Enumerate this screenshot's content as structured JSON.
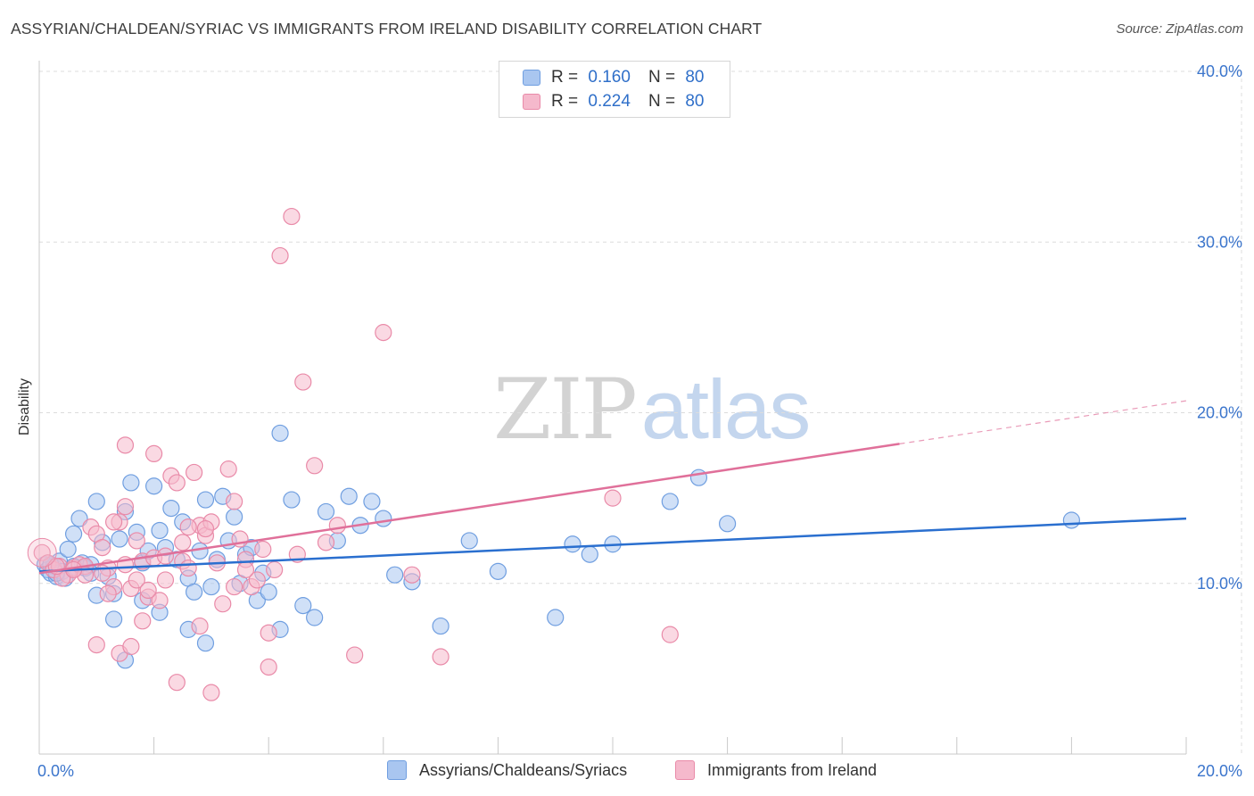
{
  "header": {
    "title": "ASSYRIAN/CHALDEAN/SYRIAC VS IMMIGRANTS FROM IRELAND DISABILITY CORRELATION CHART",
    "source": "Source: ZipAtlas.com"
  },
  "watermark": {
    "zip": "ZIP",
    "atlas": "atlas"
  },
  "legend": {
    "rows": [
      {
        "r_label": "R =",
        "r_value": "0.160",
        "n_label": "N =",
        "n_value": "80",
        "color": "#a9c6f0"
      },
      {
        "r_label": "R =",
        "r_value": "0.224",
        "n_label": "N =",
        "n_value": "80",
        "color": "#f5b9cc"
      }
    ]
  },
  "bottom_legend": {
    "series_a": "Assyrians/Chaldeans/Syriacs",
    "series_b": "Immigrants from Ireland"
  },
  "colors": {
    "series_a_fill": "#a9c6f0",
    "series_a_stroke": "#6f9ee0",
    "series_a_line": "#2a6fcf",
    "series_b_fill": "#f5b9cc",
    "series_b_stroke": "#e98aa8",
    "series_b_line": "#e0709a",
    "tick_label": "#3b75cc",
    "grid": "#dcdcdc"
  },
  "chart_data": {
    "type": "scatter",
    "title": "ASSYRIAN/CHALDEAN/SYRIAC VS IMMIGRANTS FROM IRELAND DISABILITY CORRELATION CHART",
    "xlabel": "",
    "ylabel": "Disability",
    "xlim": [
      0,
      20
    ],
    "ylim": [
      0,
      40
    ],
    "x_tick_labels": [
      "0.0%",
      "20.0%"
    ],
    "y_ticks": [
      10,
      20,
      30,
      40
    ],
    "y_tick_labels": [
      "10.0%",
      "20.0%",
      "30.0%",
      "40.0%"
    ],
    "grid": "horizontal dashed",
    "legend_position": "top-center",
    "series": [
      {
        "name": "Assyrians/Chaldeans/Syriacs",
        "R": 0.16,
        "N": 80,
        "trend": {
          "x": [
            0,
            20
          ],
          "y": [
            10.7,
            13.8
          ],
          "dashed_from": null
        },
        "points": [
          [
            0.1,
            11.1
          ],
          [
            0.15,
            10.8
          ],
          [
            0.2,
            10.6
          ],
          [
            0.25,
            11.0
          ],
          [
            0.3,
            10.4
          ],
          [
            0.35,
            11.3
          ],
          [
            0.4,
            10.7
          ],
          [
            0.45,
            10.3
          ],
          [
            0.5,
            12.0
          ],
          [
            0.6,
            12.9
          ],
          [
            0.7,
            13.8
          ],
          [
            0.75,
            11.2
          ],
          [
            0.8,
            10.9
          ],
          [
            0.9,
            11.1
          ],
          [
            1.0,
            9.3
          ],
          [
            1.1,
            12.4
          ],
          [
            1.2,
            10.4
          ],
          [
            1.3,
            9.4
          ],
          [
            1.4,
            12.6
          ],
          [
            1.5,
            14.2
          ],
          [
            1.6,
            15.9
          ],
          [
            1.7,
            13.0
          ],
          [
            1.8,
            11.2
          ],
          [
            1.9,
            11.9
          ],
          [
            2.0,
            15.7
          ],
          [
            2.1,
            13.1
          ],
          [
            2.2,
            12.1
          ],
          [
            2.3,
            14.4
          ],
          [
            2.4,
            11.4
          ],
          [
            2.5,
            13.6
          ],
          [
            2.6,
            10.3
          ],
          [
            2.7,
            9.5
          ],
          [
            2.8,
            11.9
          ],
          [
            2.9,
            14.9
          ],
          [
            3.0,
            9.8
          ],
          [
            3.1,
            11.4
          ],
          [
            3.2,
            15.1
          ],
          [
            3.3,
            12.5
          ],
          [
            3.4,
            13.9
          ],
          [
            3.5,
            10.0
          ],
          [
            3.6,
            11.7
          ],
          [
            3.7,
            12.1
          ],
          [
            3.8,
            9.0
          ],
          [
            3.9,
            10.6
          ],
          [
            4.0,
            9.5
          ],
          [
            4.2,
            7.3
          ],
          [
            4.4,
            14.9
          ],
          [
            4.6,
            8.7
          ],
          [
            4.8,
            8.0
          ],
          [
            5.0,
            14.2
          ],
          [
            5.2,
            12.5
          ],
          [
            5.4,
            15.1
          ],
          [
            5.6,
            13.4
          ],
          [
            5.8,
            14.8
          ],
          [
            6.0,
            13.8
          ],
          [
            6.2,
            10.5
          ],
          [
            6.5,
            10.1
          ],
          [
            7.0,
            7.5
          ],
          [
            7.5,
            12.5
          ],
          [
            8.0,
            10.7
          ],
          [
            9.0,
            8.0
          ],
          [
            9.3,
            12.3
          ],
          [
            9.6,
            11.7
          ],
          [
            10.0,
            12.3
          ],
          [
            11.0,
            14.8
          ],
          [
            11.5,
            16.2
          ],
          [
            12.0,
            13.5
          ],
          [
            18.0,
            13.7
          ],
          [
            4.2,
            18.8
          ],
          [
            1.5,
            5.5
          ],
          [
            2.9,
            6.5
          ],
          [
            1.3,
            7.9
          ],
          [
            2.1,
            8.3
          ],
          [
            2.6,
            7.3
          ],
          [
            1.0,
            14.8
          ],
          [
            0.6,
            11.0
          ],
          [
            0.3,
            10.6
          ],
          [
            0.2,
            11.1
          ],
          [
            0.9,
            10.6
          ],
          [
            1.8,
            9.0
          ]
        ]
      },
      {
        "name": "Immigrants from Ireland",
        "R": 0.224,
        "N": 80,
        "trend": {
          "x": [
            0,
            20
          ],
          "y": [
            10.6,
            20.7
          ],
          "dashed_from": 15.0
        },
        "points": [
          [
            0.05,
            11.8
          ],
          [
            0.15,
            11.2
          ],
          [
            0.25,
            10.8
          ],
          [
            0.35,
            11.0
          ],
          [
            0.5,
            10.5
          ],
          [
            0.6,
            10.9
          ],
          [
            0.7,
            11.1
          ],
          [
            0.8,
            11.0
          ],
          [
            0.9,
            13.3
          ],
          [
            1.0,
            12.9
          ],
          [
            1.1,
            12.1
          ],
          [
            1.2,
            10.9
          ],
          [
            1.3,
            9.8
          ],
          [
            1.4,
            13.6
          ],
          [
            1.5,
            11.1
          ],
          [
            1.6,
            9.7
          ],
          [
            1.7,
            10.2
          ],
          [
            1.8,
            11.3
          ],
          [
            1.9,
            9.2
          ],
          [
            2.0,
            11.5
          ],
          [
            2.1,
            9.0
          ],
          [
            2.2,
            10.2
          ],
          [
            2.3,
            16.3
          ],
          [
            2.4,
            15.9
          ],
          [
            2.5,
            11.3
          ],
          [
            2.6,
            10.9
          ],
          [
            2.7,
            16.5
          ],
          [
            2.8,
            13.4
          ],
          [
            2.9,
            12.8
          ],
          [
            3.0,
            13.6
          ],
          [
            3.1,
            11.2
          ],
          [
            3.2,
            8.8
          ],
          [
            3.3,
            16.7
          ],
          [
            3.4,
            14.8
          ],
          [
            3.5,
            12.6
          ],
          [
            3.6,
            11.4
          ],
          [
            3.7,
            9.8
          ],
          [
            3.8,
            10.2
          ],
          [
            3.9,
            12.0
          ],
          [
            4.0,
            7.1
          ],
          [
            4.2,
            29.2
          ],
          [
            4.4,
            31.5
          ],
          [
            4.6,
            21.8
          ],
          [
            4.8,
            16.9
          ],
          [
            5.0,
            12.4
          ],
          [
            5.2,
            13.4
          ],
          [
            5.5,
            5.8
          ],
          [
            6.0,
            24.7
          ],
          [
            6.5,
            10.5
          ],
          [
            7.0,
            5.7
          ],
          [
            10.0,
            15.0
          ],
          [
            11.0,
            7.0
          ],
          [
            1.5,
            18.1
          ],
          [
            2.0,
            17.6
          ],
          [
            1.8,
            7.8
          ],
          [
            2.4,
            4.2
          ],
          [
            1.0,
            6.4
          ],
          [
            3.0,
            3.6
          ],
          [
            4.0,
            5.1
          ],
          [
            1.4,
            5.9
          ],
          [
            1.6,
            6.3
          ],
          [
            0.4,
            10.3
          ],
          [
            0.8,
            10.5
          ],
          [
            1.3,
            13.6
          ],
          [
            0.3,
            11.0
          ],
          [
            0.6,
            10.8
          ],
          [
            1.1,
            10.6
          ],
          [
            1.5,
            14.5
          ],
          [
            1.9,
            9.6
          ],
          [
            2.6,
            13.3
          ],
          [
            2.9,
            13.2
          ],
          [
            3.4,
            9.8
          ],
          [
            4.1,
            10.8
          ],
          [
            1.7,
            12.5
          ],
          [
            2.2,
            11.6
          ],
          [
            2.5,
            12.4
          ],
          [
            3.6,
            10.8
          ],
          [
            1.2,
            9.4
          ],
          [
            2.8,
            7.5
          ],
          [
            4.5,
            11.7
          ]
        ]
      }
    ]
  }
}
